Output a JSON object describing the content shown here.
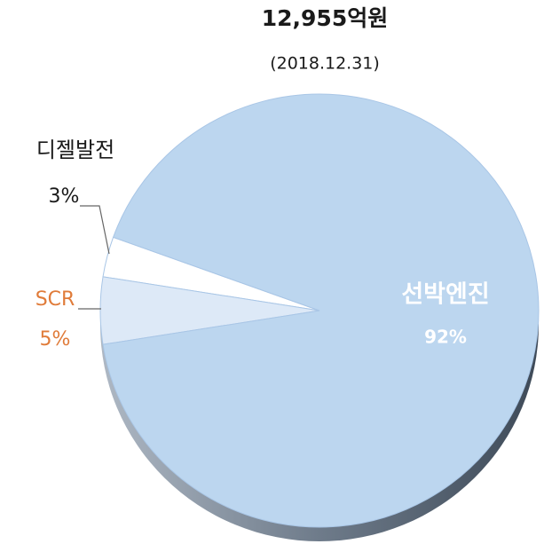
{
  "chart_data": {
    "type": "pie",
    "title": "12,955억원",
    "subtitle": "(2018.12.31)",
    "categories": [
      "디젤발전",
      "SCR",
      "선박엔진"
    ],
    "values": [
      3,
      5,
      92
    ],
    "value_labels": [
      "3%",
      "5%",
      "92%"
    ],
    "colors": [
      "#ffffff",
      "#dde9f7",
      "#bcd6ef"
    ],
    "label_colors": [
      "#1a1a1a",
      "#e07b39",
      "#ffffff"
    ]
  }
}
